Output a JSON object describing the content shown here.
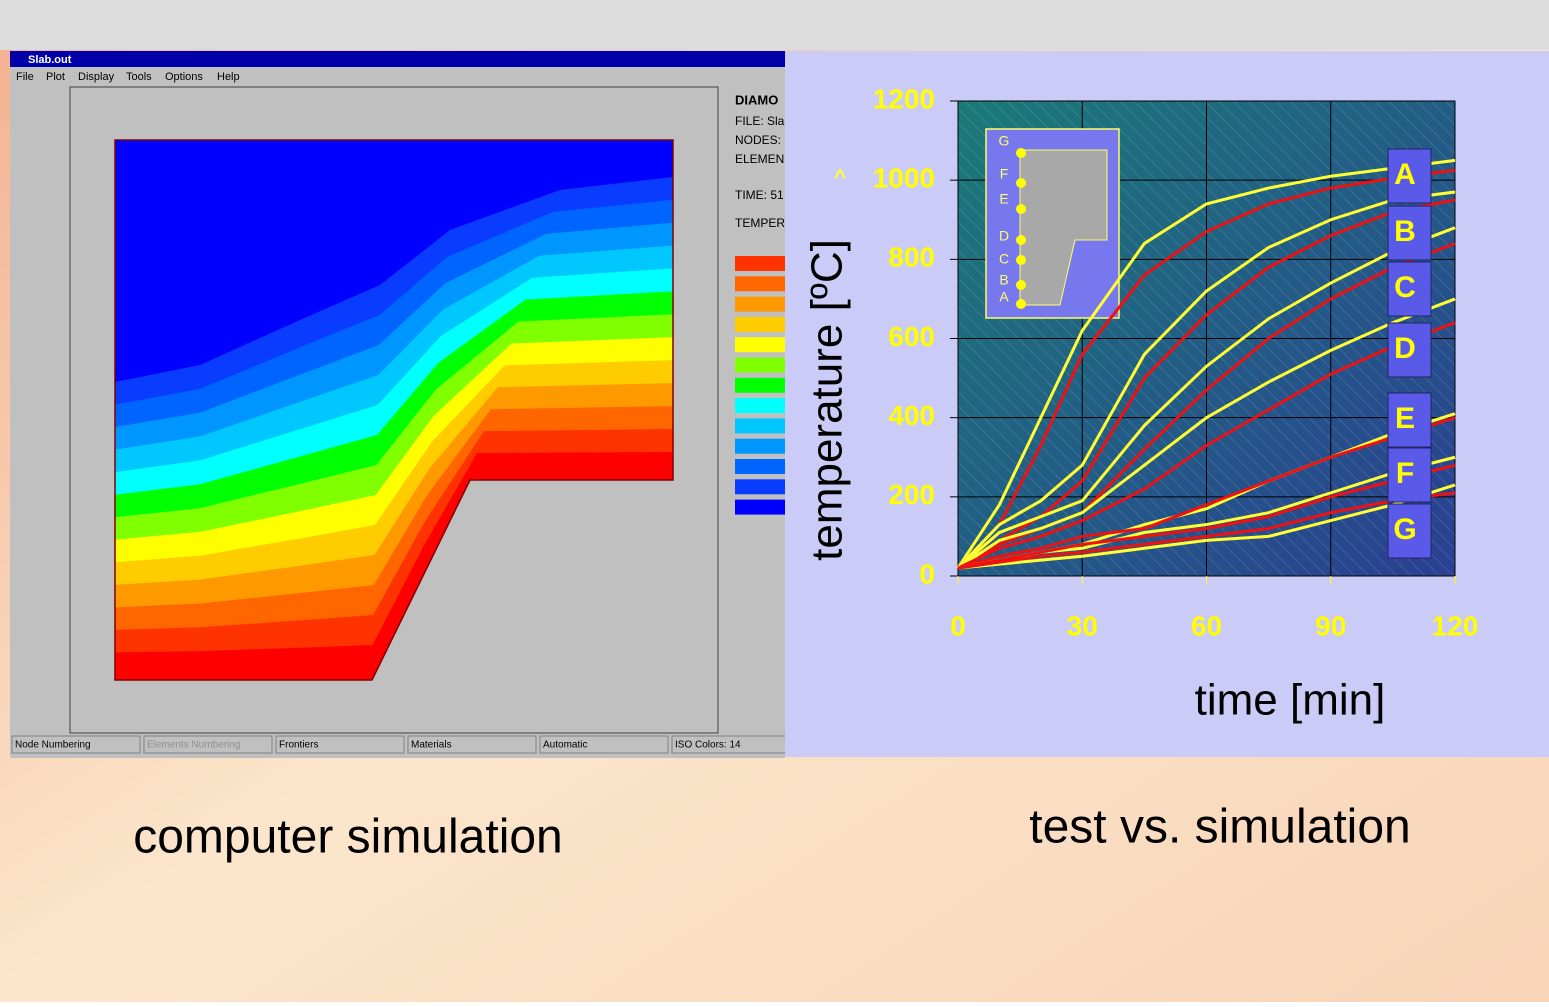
{
  "window": {
    "title": "Slab.out",
    "menu": [
      "File",
      "Plot",
      "Display",
      "Tools",
      "Options",
      "Help"
    ],
    "info": [
      "DIAMO",
      "FILE: Sla",
      "NODES:",
      "ELEMEN",
      "TIME: 51",
      "TEMPER"
    ],
    "iso_colors": [
      "#ff3300",
      "#ff6600",
      "#ff9900",
      "#ffcc00",
      "#ffff00",
      "#80ff00",
      "#00ff00",
      "#00ffff",
      "#00c8ff",
      "#0096ff",
      "#0064ff",
      "#0a3cff",
      "#0000ff"
    ],
    "status": [
      "Node Numbering",
      "Elements Numbering",
      "Frontiers",
      "Materials",
      "Automatic",
      "ISO Colors: 14"
    ]
  },
  "captions": [
    "computer simulation",
    "test vs. simulation"
  ],
  "chart_data": {
    "type": "line",
    "xlabel": "time [min]",
    "ylabel": "temperature [ºC]",
    "annotation": "^",
    "x": [
      0,
      10,
      20,
      30,
      45,
      60,
      75,
      90,
      105,
      120
    ],
    "xlim": [
      0,
      120
    ],
    "xticks": [
      0,
      30,
      60,
      90,
      120
    ],
    "ylim": [
      0,
      1200
    ],
    "yticks": [
      0,
      200,
      400,
      600,
      800,
      1000,
      1200
    ],
    "grid": true,
    "curve_labels": [
      "A",
      "B",
      "C",
      "D",
      "E",
      "F",
      "G"
    ],
    "inset_labels": [
      "G",
      "F",
      "E",
      "D",
      "C",
      "B",
      "A"
    ],
    "series": [
      {
        "color": "#ffff33",
        "values": [
          20,
          180,
          400,
          620,
          840,
          940,
          980,
          1010,
          1030,
          1050
        ]
      },
      {
        "color": "#ee1111",
        "values": [
          20,
          130,
          330,
          560,
          760,
          870,
          940,
          980,
          1005,
          1025
        ]
      },
      {
        "color": "#ffff33",
        "values": [
          20,
          130,
          190,
          280,
          560,
          720,
          830,
          900,
          950,
          970
        ]
      },
      {
        "color": "#ee1111",
        "values": [
          20,
          90,
          150,
          240,
          500,
          660,
          780,
          860,
          920,
          950
        ]
      },
      {
        "color": "#ffff33",
        "values": [
          20,
          110,
          150,
          190,
          380,
          530,
          650,
          740,
          820,
          880
        ]
      },
      {
        "color": "#ee1111",
        "values": [
          20,
          80,
          120,
          160,
          320,
          470,
          600,
          700,
          780,
          840
        ]
      },
      {
        "color": "#ffff33",
        "values": [
          20,
          90,
          120,
          160,
          280,
          400,
          490,
          570,
          640,
          700
        ]
      },
      {
        "color": "#ee1111",
        "values": [
          20,
          70,
          100,
          140,
          220,
          330,
          420,
          510,
          580,
          640
        ]
      },
      {
        "color": "#ffff33",
        "values": [
          20,
          40,
          60,
          80,
          130,
          170,
          240,
          300,
          360,
          410
        ]
      },
      {
        "color": "#ee1111",
        "values": [
          20,
          50,
          70,
          100,
          120,
          180,
          240,
          300,
          350,
          400
        ]
      },
      {
        "color": "#ffff33",
        "values": [
          20,
          40,
          60,
          70,
          110,
          130,
          160,
          210,
          260,
          300
        ]
      },
      {
        "color": "#ee1111",
        "values": [
          20,
          40,
          60,
          80,
          100,
          120,
          150,
          200,
          240,
          280
        ]
      },
      {
        "color": "#ffff33",
        "values": [
          20,
          30,
          40,
          50,
          70,
          90,
          100,
          140,
          180,
          230
        ]
      },
      {
        "color": "#ee1111",
        "values": [
          20,
          35,
          50,
          60,
          80,
          100,
          120,
          160,
          190,
          210
        ]
      }
    ]
  }
}
